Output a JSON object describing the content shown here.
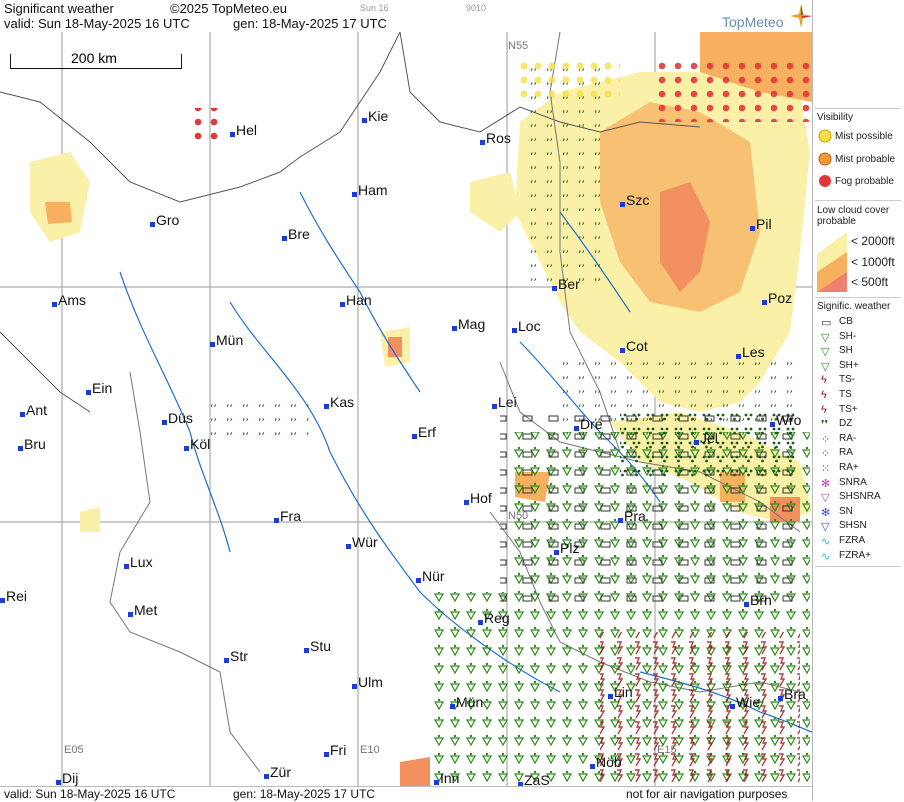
{
  "header": {
    "title": "Significant weather",
    "copyright": "©2025 TopMeteo.eu",
    "valid_line": "valid:  Sun  18-May-2025  16 UTC",
    "gen_line": "gen: 18-May-2025 17 UTC",
    "small_date": "Sun 16",
    "small_code": "9010",
    "logo": "TopMeteo"
  },
  "footer": {
    "valid_line": "valid:  Sun  18-May-2025  16 UTC",
    "gen_line": "gen: 18-May-2025 17 UTC",
    "disclaimer": "not for air navigation purposes"
  },
  "map": {
    "scale_label": "200 km",
    "grid_labels": [
      "N55",
      "N50",
      "E05",
      "E10",
      "E15"
    ],
    "cities": [
      "Hel",
      "Kie",
      "Ros",
      "Ham",
      "Gro",
      "Bre",
      "Szc",
      "Pil",
      "Ams",
      "Han",
      "Ber",
      "Poz",
      "Mag",
      "Loc",
      "Mün",
      "Cot",
      "Les",
      "Ein",
      "Kas",
      "Lei",
      "Ant",
      "Düs",
      "Dre",
      "Wro",
      "Köl",
      "Erf",
      "Jel",
      "Bru",
      "Hof",
      "Fra",
      "Pra",
      "Lux",
      "Wür",
      "Plz",
      "Nür",
      "Rei",
      "Met",
      "Brn",
      "Reg",
      "Stu",
      "Str",
      "Lin",
      "Ulm",
      "Mün",
      "Wie",
      "Bra",
      "Fri",
      "Inn",
      "ZaS",
      "Nöb",
      "Dij",
      "Zür"
    ],
    "colors": {
      "mist_possible": "#f5e26a",
      "mist_probable": "#f29a3a",
      "fog_probable": "#e04040",
      "cloud_2000": "#fbf0a8",
      "cloud_1000": "#f7b060",
      "cloud_500": "#f08070",
      "rain": "#1a6a1a",
      "shower": "#2e8b1a",
      "thunder": "#9b1010"
    }
  },
  "legend": {
    "visibility_title": "Visibility",
    "visibility_items": [
      "Mist possible",
      "Mist probable",
      "Fog probable"
    ],
    "cloud_title": "Low cloud cover probable",
    "cloud_items": [
      "< 2000ft",
      "< 1000ft",
      "<   500ft"
    ],
    "weather_title": "Signific. weather",
    "weather_items": [
      "CB",
      "SH-",
      "SH",
      "SH+",
      "TS-",
      "TS",
      "TS+",
      "DZ",
      "RA-",
      "RA",
      "RA+",
      "SNRA",
      "SHSNRA",
      "SN",
      "SHSN",
      "FZRA",
      "FZRA+"
    ]
  }
}
